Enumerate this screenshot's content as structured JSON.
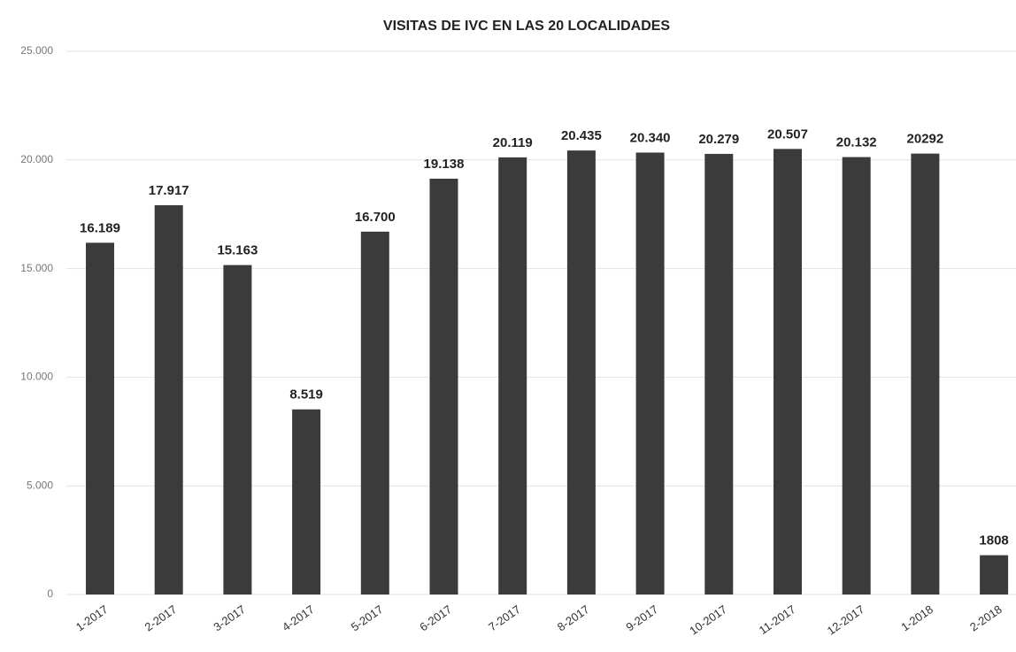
{
  "chart_data": {
    "type": "bar",
    "title": "VISITAS DE IVC EN LAS 20 LOCALIDADES",
    "categories": [
      "1-2017",
      "2-2017",
      "3-2017",
      "4-2017",
      "5-2017",
      "6-2017",
      "7-2017",
      "8-2017",
      "9-2017",
      "10-2017",
      "11-2017",
      "12-2017",
      "1-2018",
      "2-2018"
    ],
    "values": [
      16189,
      17917,
      15163,
      8519,
      16700,
      19138,
      20119,
      20435,
      20340,
      20279,
      20507,
      20132,
      20292,
      1808
    ],
    "value_labels": [
      "16.189",
      "17.917",
      "15.163",
      "8.519",
      "16.700",
      "19.138",
      "20.119",
      "20.435",
      "20.340",
      "20.279",
      "20.507",
      "20.132",
      "20292",
      "1808"
    ],
    "color": "#3b3b3b",
    "ylim": [
      0,
      25000
    ],
    "yticks": [
      0,
      {
        "value": 5000,
        "label": "5.000"
      },
      {
        "value": 10000,
        "label": "10.000"
      },
      {
        "value": 15000,
        "label": "15.000"
      },
      {
        "value": 20000,
        "label": "20.000"
      },
      {
        "value": 25000,
        "label": "25.000"
      }
    ],
    "grid": true
  }
}
